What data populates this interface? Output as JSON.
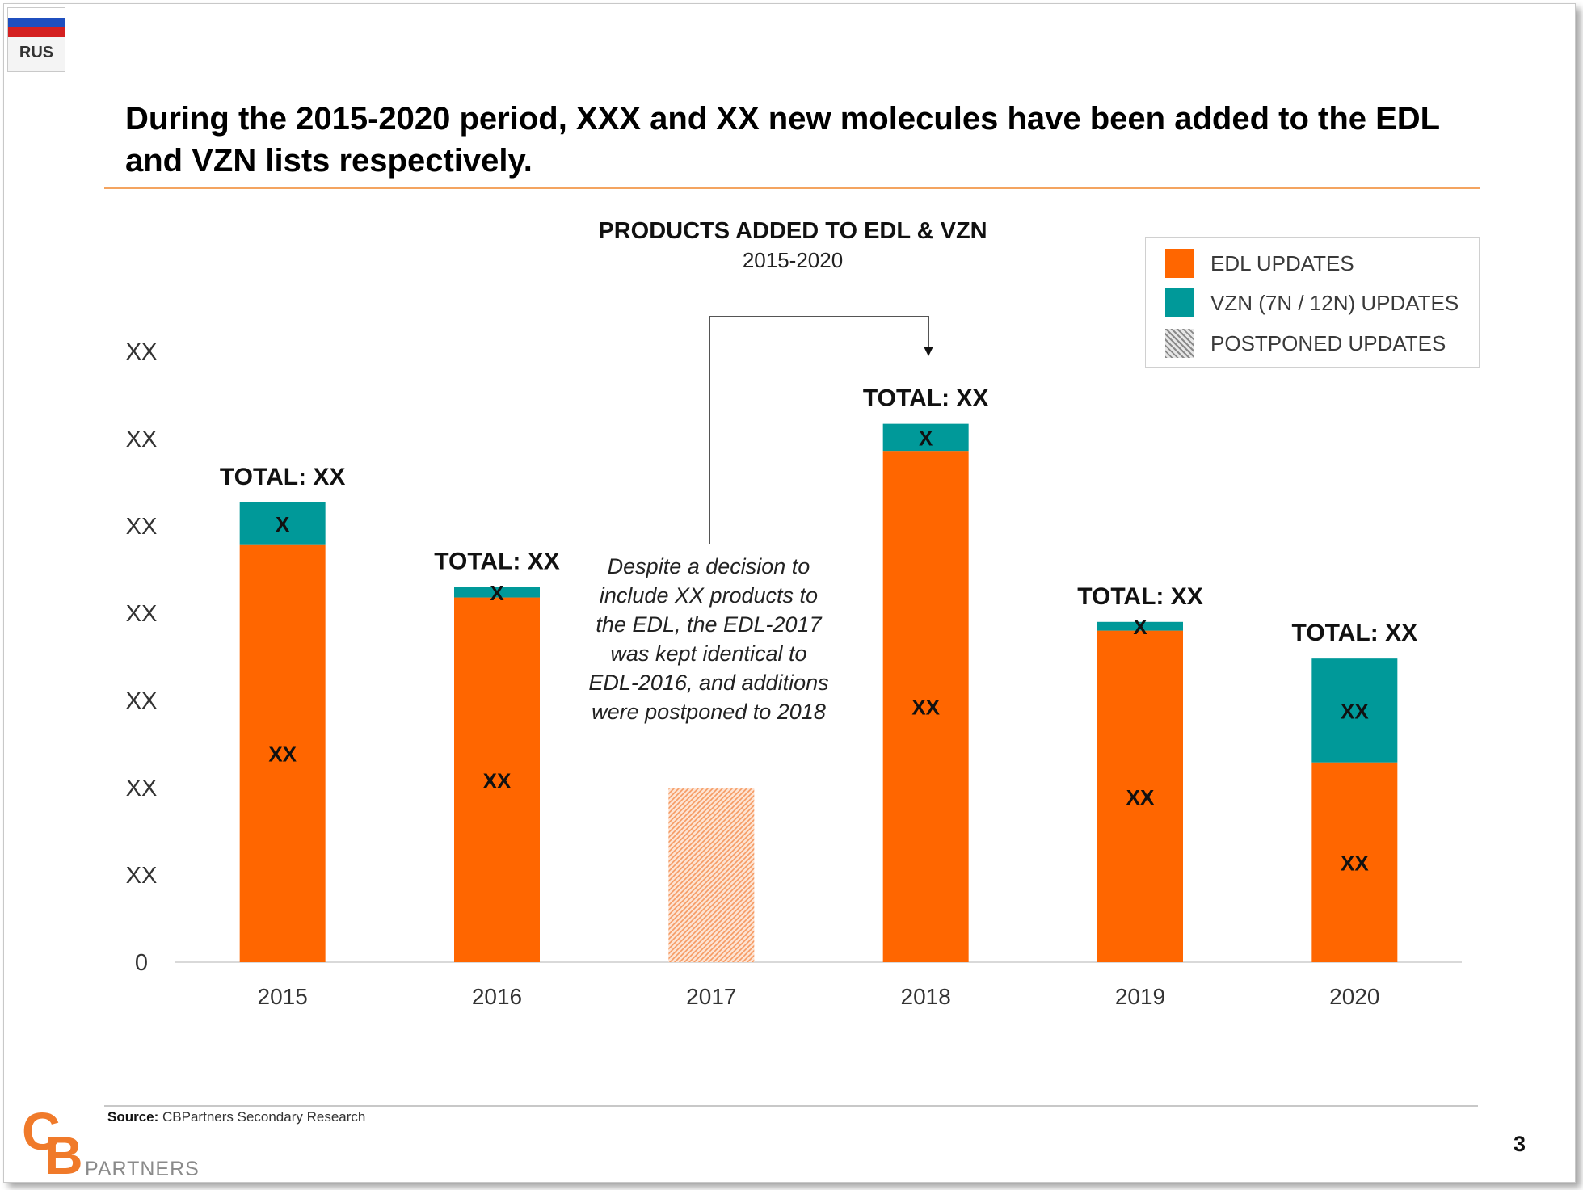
{
  "flag": {
    "code": "RUS"
  },
  "headline": "During the 2015-2020 period, XXX and XX new molecules have been added to the EDL and VZN lists respectively.",
  "chart_data": {
    "type": "bar",
    "stacked": true,
    "title": "PRODUCTS ADDED  TO EDL & VZN",
    "subtitle": "2015-2020",
    "categories": [
      "2015",
      "2016",
      "2017",
      "2018",
      "2019",
      "2020"
    ],
    "y_tick_labels": [
      "0",
      "XX",
      "XX",
      "XX",
      "XX",
      "XX",
      "XX",
      "XX"
    ],
    "ylim": [
      0,
      7
    ],
    "series": [
      {
        "name": "EDL UPDATES",
        "color": "#ff6600",
        "values": [
          4.79,
          4.18,
          0,
          5.86,
          3.8,
          2.29
        ],
        "labels": [
          "XX",
          "XX",
          "",
          "XX",
          "XX",
          "XX"
        ]
      },
      {
        "name": "VZN  (7N / 12N) UPDATES",
        "color": "#009999",
        "values": [
          0.48,
          0.12,
          0,
          0.31,
          0.1,
          1.19
        ],
        "labels": [
          "X",
          "X",
          "",
          "X",
          "X",
          "XX"
        ]
      },
      {
        "name": "POSTPONED  UPDATES",
        "color": "#f5a070",
        "pattern": "hatched",
        "values": [
          0,
          0,
          1.99,
          0,
          0,
          0
        ],
        "labels": [
          "",
          "",
          "",
          "",
          "",
          ""
        ]
      }
    ],
    "total_labels": [
      "TOTAL: XX",
      "TOTAL: XX",
      "",
      "TOTAL: XX",
      "TOTAL: XX",
      "TOTAL: XX"
    ],
    "annotation": "Despite a decision to include XX products to the EDL, the EDL-2017 was kept identical to EDL-2016, and additions were postponed to 2018",
    "grid": false,
    "legend_position": "top-right"
  },
  "source": {
    "label": "Source:",
    "text": " CBPartners Secondary Research"
  },
  "logo": {
    "c": "C",
    "b": "B",
    "partners": "PARTNERS"
  },
  "page_number": "3"
}
